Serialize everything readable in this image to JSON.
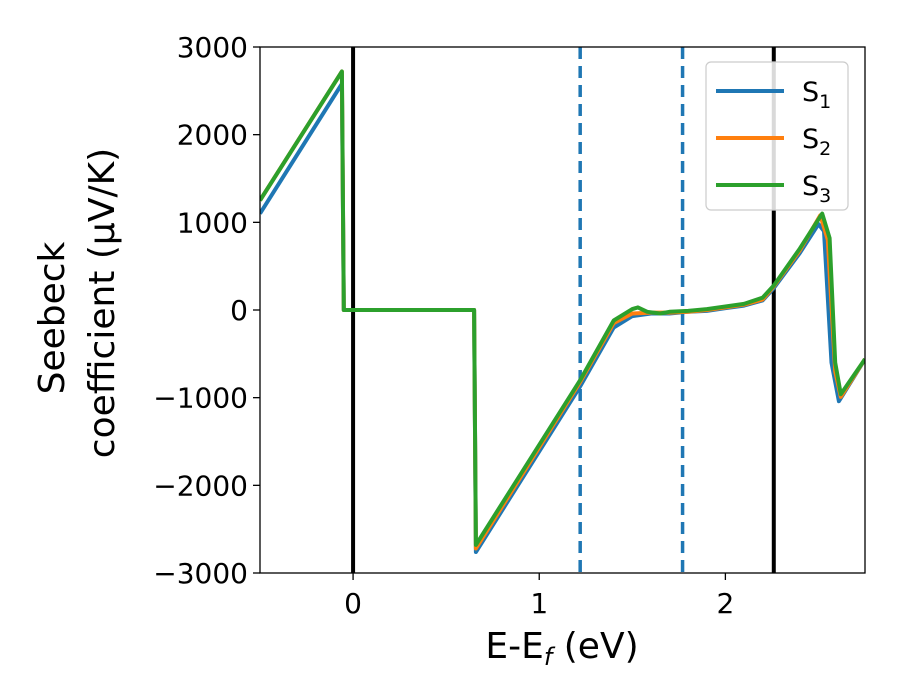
{
  "chart_data": {
    "type": "line",
    "xlabel": "E-E",
    "xlabel_sub": "f",
    "xlabel_unit": " (eV)",
    "ylabel_line1": "Seebeck",
    "ylabel_line2": "coefficient  (μV/K)",
    "xlim": [
      -0.5,
      2.75
    ],
    "ylim": [
      -3000,
      3000
    ],
    "xticks": [
      0,
      1,
      2
    ],
    "xtick_labels": [
      "0",
      "1",
      "2"
    ],
    "yticks": [
      3000,
      2000,
      1000,
      0,
      -1000,
      -2000,
      -3000
    ],
    "ytick_labels": [
      "3000",
      "2000",
      "1000",
      "0",
      "−1000",
      "−2000",
      "−3000"
    ],
    "legend_placement": "top-right",
    "vertical_lines": [
      {
        "x": 0,
        "style": "solid",
        "color": "#000000"
      },
      {
        "x": 2.26,
        "style": "solid",
        "color": "#000000"
      },
      {
        "x": 1.22,
        "style": "dashed",
        "color": "#1f77b4"
      },
      {
        "x": 1.77,
        "style": "dashed",
        "color": "#1f77b4"
      }
    ],
    "series": [
      {
        "name": "S",
        "sub": "1",
        "color": "#1f77b4",
        "points": [
          [
            -0.5,
            1100
          ],
          [
            -0.06,
            2580
          ],
          [
            -0.05,
            0
          ],
          [
            0.65,
            0
          ],
          [
            0.66,
            -2760
          ],
          [
            1.22,
            -870
          ],
          [
            1.4,
            -200
          ],
          [
            1.5,
            -70
          ],
          [
            1.6,
            -40
          ],
          [
            1.7,
            -40
          ],
          [
            1.8,
            -20
          ],
          [
            1.9,
            -10
          ],
          [
            2.0,
            20
          ],
          [
            2.1,
            50
          ],
          [
            2.2,
            110
          ],
          [
            2.26,
            250
          ],
          [
            2.4,
            650
          ],
          [
            2.5,
            980
          ],
          [
            2.53,
            900
          ],
          [
            2.57,
            -600
          ],
          [
            2.61,
            -1040
          ],
          [
            2.75,
            -560
          ]
        ]
      },
      {
        "name": "S",
        "sub": "2",
        "color": "#ff7f0e",
        "points": [
          [
            -0.5,
            1250
          ],
          [
            -0.06,
            2720
          ],
          [
            -0.05,
            0
          ],
          [
            0.65,
            0
          ],
          [
            0.66,
            -2720
          ],
          [
            1.22,
            -820
          ],
          [
            1.4,
            -150
          ],
          [
            1.5,
            -40
          ],
          [
            1.6,
            -30
          ],
          [
            1.7,
            -30
          ],
          [
            1.8,
            -20
          ],
          [
            1.9,
            0
          ],
          [
            2.0,
            30
          ],
          [
            2.1,
            60
          ],
          [
            2.2,
            120
          ],
          [
            2.26,
            270
          ],
          [
            2.4,
            680
          ],
          [
            2.51,
            1080
          ],
          [
            2.55,
            800
          ],
          [
            2.59,
            -700
          ],
          [
            2.62,
            -990
          ],
          [
            2.75,
            -560
          ]
        ]
      },
      {
        "name": "S",
        "sub": "3",
        "color": "#2ca02c",
        "points": [
          [
            -0.5,
            1250
          ],
          [
            -0.06,
            2720
          ],
          [
            -0.05,
            0
          ],
          [
            0.65,
            0
          ],
          [
            0.66,
            -2680
          ],
          [
            1.22,
            -800
          ],
          [
            1.4,
            -120
          ],
          [
            1.5,
            10
          ],
          [
            1.53,
            30
          ],
          [
            1.58,
            -20
          ],
          [
            1.65,
            -40
          ],
          [
            1.7,
            -20
          ],
          [
            1.8,
            -10
          ],
          [
            1.9,
            10
          ],
          [
            2.0,
            40
          ],
          [
            2.1,
            70
          ],
          [
            2.2,
            140
          ],
          [
            2.26,
            280
          ],
          [
            2.4,
            700
          ],
          [
            2.52,
            1100
          ],
          [
            2.56,
            820
          ],
          [
            2.59,
            -600
          ],
          [
            2.62,
            -960
          ],
          [
            2.75,
            -560
          ]
        ]
      }
    ]
  }
}
